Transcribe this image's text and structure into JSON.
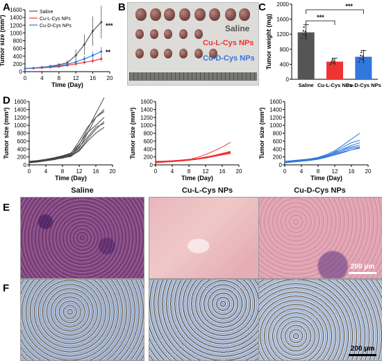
{
  "panels": {
    "A": "A",
    "B": "B",
    "C": "C",
    "D": "D",
    "E": "E",
    "F": "F"
  },
  "colors": {
    "saline": "#555555",
    "l": "#ee3333",
    "d": "#3377dd"
  },
  "photo": {
    "saline": "Saline",
    "l": "Cu-L-Cys NPs",
    "d": "Cu-D-Cys NPs"
  },
  "micro_titles": [
    "Saline",
    "Cu-L-Cys NPs",
    "Cu-D-Cys NPs"
  ],
  "scale_bar": "200 μm",
  "chart_data": [
    {
      "id": "A",
      "type": "line",
      "xlabel": "Time (Day)",
      "ylabel": "Tumor size (mm³)",
      "xlim": [
        0,
        20
      ],
      "ylim": [
        0,
        1600
      ],
      "xticks": [
        0,
        4,
        8,
        12,
        16,
        20
      ],
      "yticks": [
        0,
        200,
        400,
        600,
        800,
        1000,
        1200,
        1400,
        1600
      ],
      "x": [
        0,
        2,
        4,
        6,
        8,
        10,
        12,
        14,
        16,
        18
      ],
      "series": [
        {
          "name": "Saline",
          "color": "#555555",
          "values": [
            80,
            90,
            110,
            140,
            175,
            230,
            420,
            700,
            1050,
            1280
          ],
          "err": [
            10,
            15,
            25,
            35,
            50,
            70,
            150,
            260,
            380,
            420
          ]
        },
        {
          "name": "Cu-L-Cys NPs",
          "color": "#ee3333",
          "values": [
            80,
            88,
            100,
            115,
            130,
            165,
            200,
            240,
            280,
            330
          ],
          "err": [
            10,
            12,
            18,
            22,
            30,
            35,
            45,
            55,
            60,
            70
          ]
        },
        {
          "name": "Cu-D-Cys NPs",
          "color": "#3377dd",
          "values": [
            80,
            95,
            115,
            130,
            150,
            190,
            250,
            330,
            420,
            520
          ],
          "err": [
            10,
            14,
            20,
            28,
            35,
            45,
            60,
            80,
            100,
            120
          ]
        }
      ],
      "annotations": [
        "***",
        "**"
      ]
    },
    {
      "id": "C",
      "type": "bar",
      "ylabel": "Tumor weight (mg)",
      "ylim": [
        0,
        2000
      ],
      "yticks": [
        0,
        400,
        800,
        1200,
        1600,
        2000
      ],
      "categories": [
        "Saline",
        "Cu-L-Cys NPs",
        "Cu-D-Cys NPs"
      ],
      "values": [
        1250,
        470,
        600
      ],
      "err": [
        200,
        90,
        170
      ],
      "colors": [
        "#555555",
        "#ee3333",
        "#3377dd"
      ],
      "annotations": [
        "***",
        "***"
      ]
    },
    {
      "id": "D1",
      "type": "line",
      "xlabel": "Time (Day)",
      "ylabel": "Tumor size (mm³)",
      "xlim": [
        0,
        20
      ],
      "ylim": [
        0,
        1600
      ],
      "xticks": [
        0,
        4,
        8,
        12,
        16,
        20
      ],
      "yticks": [
        0,
        200,
        400,
        600,
        800,
        1000,
        1200,
        1400,
        1600
      ],
      "x": [
        0,
        2,
        4,
        6,
        8,
        10,
        12,
        14,
        16,
        18
      ],
      "color": "#444444",
      "series": [
        {
          "values": [
            60,
            80,
            110,
            150,
            190,
            250,
            500,
            900,
            1300,
            1700
          ]
        },
        {
          "values": [
            80,
            100,
            120,
            160,
            200,
            230,
            420,
            800,
            1200,
            1400
          ]
        },
        {
          "values": [
            70,
            90,
            130,
            170,
            220,
            280,
            600,
            950,
            1200,
            1350
          ]
        },
        {
          "values": [
            50,
            70,
            100,
            130,
            180,
            210,
            380,
            650,
            900,
            1100
          ]
        },
        {
          "values": [
            90,
            110,
            140,
            180,
            230,
            300,
            520,
            820,
            1000,
            1200
          ]
        },
        {
          "values": [
            60,
            90,
            120,
            150,
            210,
            260,
            450,
            700,
            950,
            1050
          ]
        },
        {
          "values": [
            70,
            80,
            110,
            140,
            170,
            220,
            350,
            600,
            800,
            950
          ]
        }
      ]
    },
    {
      "id": "D2",
      "type": "line",
      "xlabel": "Time (Day)",
      "ylabel": "Tumor size (mm³)",
      "xlim": [
        0,
        20
      ],
      "ylim": [
        0,
        1600
      ],
      "xticks": [
        0,
        4,
        8,
        12,
        16,
        20
      ],
      "yticks": [
        0,
        200,
        400,
        600,
        800,
        1000,
        1200,
        1400,
        1600
      ],
      "x": [
        0,
        2,
        4,
        6,
        8,
        10,
        12,
        14,
        16,
        18
      ],
      "color": "#ee3333",
      "series": [
        {
          "values": [
            60,
            75,
            90,
            110,
            130,
            190,
            260,
            350,
            450,
            570
          ]
        },
        {
          "values": [
            80,
            90,
            100,
            110,
            120,
            150,
            190,
            240,
            290,
            340
          ]
        },
        {
          "values": [
            70,
            85,
            95,
            105,
            120,
            140,
            180,
            220,
            260,
            300
          ]
        },
        {
          "values": [
            90,
            95,
            105,
            120,
            140,
            160,
            200,
            230,
            270,
            310
          ]
        },
        {
          "values": [
            50,
            65,
            80,
            95,
            115,
            140,
            170,
            210,
            250,
            290
          ]
        },
        {
          "values": [
            75,
            85,
            95,
            115,
            130,
            155,
            190,
            230,
            280,
            330
          ]
        },
        {
          "values": [
            65,
            80,
            90,
            100,
            125,
            150,
            185,
            225,
            265,
            320
          ]
        }
      ]
    },
    {
      "id": "D3",
      "type": "line",
      "xlabel": "Time (Day)",
      "ylabel": "Tumor size (mm³)",
      "xlim": [
        0,
        20
      ],
      "ylim": [
        0,
        1600
      ],
      "xticks": [
        0,
        4,
        8,
        12,
        16,
        20
      ],
      "yticks": [
        0,
        200,
        400,
        600,
        800,
        1000,
        1200,
        1400,
        1600
      ],
      "x": [
        0,
        2,
        4,
        6,
        8,
        10,
        12,
        14,
        16,
        18
      ],
      "color": "#3377dd",
      "series": [
        {
          "values": [
            70,
            90,
            120,
            150,
            190,
            260,
            360,
            500,
            650,
            800
          ]
        },
        {
          "values": [
            60,
            80,
            100,
            130,
            170,
            230,
            330,
            450,
            560,
            620
          ]
        },
        {
          "values": [
            80,
            100,
            120,
            140,
            180,
            220,
            300,
            400,
            490,
            560
          ]
        },
        {
          "values": [
            90,
            110,
            130,
            150,
            180,
            240,
            320,
            390,
            450,
            500
          ]
        },
        {
          "values": [
            60,
            75,
            95,
            120,
            150,
            200,
            280,
            360,
            420,
            460
          ]
        },
        {
          "values": [
            70,
            85,
            105,
            130,
            160,
            210,
            270,
            330,
            380,
            420
          ]
        },
        {
          "values": [
            50,
            70,
            90,
            110,
            140,
            190,
            250,
            310,
            380,
            440
          ]
        }
      ]
    }
  ]
}
